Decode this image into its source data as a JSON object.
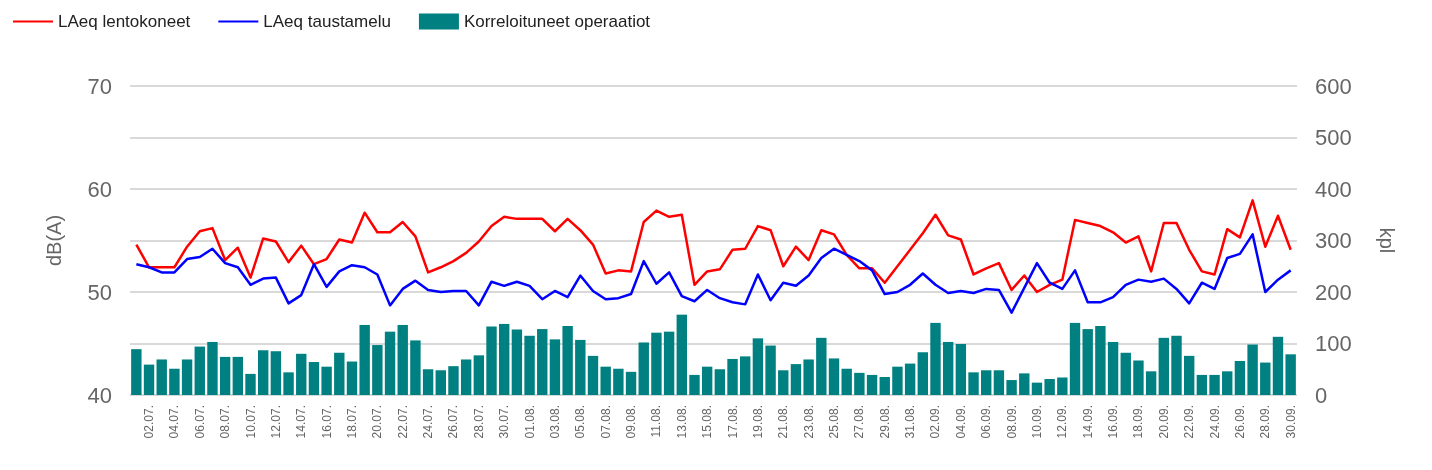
{
  "chart_data": {
    "type": "line",
    "ylabel": "dB(A)",
    "y2label": "kpl",
    "legend": "top left",
    "grid": true,
    "categories": [
      null,
      "02.07.",
      null,
      "04.07.",
      null,
      "06.07.",
      null,
      "08.07.",
      null,
      "10.07.",
      null,
      "12.07.",
      null,
      "14.07.",
      null,
      "16.07.",
      null,
      "18.07.",
      null,
      "20.07.",
      null,
      "22.07.",
      null,
      "24.07.",
      null,
      "26.07.",
      null,
      "28.07.",
      null,
      "30.07.",
      null,
      "01.08.",
      null,
      "03.08.",
      null,
      "05.08.",
      null,
      "07.08.",
      null,
      "09.08.",
      null,
      "11.08.",
      null,
      "13.08.",
      null,
      "15.08.",
      null,
      "17.08.",
      null,
      "19.08.",
      null,
      "21.08.",
      null,
      "23.08.",
      null,
      "25.08.",
      null,
      "27.08.",
      null,
      "29.08.",
      null,
      "31.08.",
      null,
      "02.09.",
      null,
      "04.09.",
      null,
      "06.09.",
      null,
      "08.09.",
      null,
      "10.09.",
      null,
      "12.09.",
      null,
      "14.09.",
      null,
      "16.09.",
      null,
      "18.09.",
      null,
      "20.09.",
      null,
      "22.09.",
      null,
      "24.09.",
      null,
      "26.09.",
      null,
      "28.09.",
      null,
      "30.09."
    ],
    "ylim": [
      40,
      70
    ],
    "yticks": [
      40,
      50,
      60,
      70
    ],
    "y2lim": [
      0,
      600
    ],
    "y2ticks": [
      0,
      100,
      200,
      300,
      400,
      500,
      600
    ],
    "series": [
      {
        "name": "LAeq lentokoneet",
        "color": "#ff0000",
        "values": [
          54.6,
          52.4,
          52.4,
          52.4,
          54.4,
          55.9,
          56.2,
          53.1,
          54.3,
          51.4,
          55.2,
          54.9,
          52.9,
          54.5,
          52.7,
          53.2,
          55.1,
          54.8,
          57.7,
          55.8,
          55.8,
          56.8,
          55.4,
          51.9,
          52.4,
          53.0,
          53.8,
          54.9,
          56.4,
          57.3,
          57.1,
          57.1,
          57.1,
          55.9,
          57.1,
          56.0,
          54.6,
          51.8,
          52.1,
          52.0,
          56.8,
          57.9,
          57.3,
          57.5,
          50.7,
          52.0,
          52.2,
          54.1,
          54.2,
          56.4,
          56.0,
          52.5,
          54.4,
          53.1,
          56.0,
          55.6,
          53.6,
          52.3,
          52.3,
          50.9,
          52.5,
          54.1,
          55.7,
          57.5,
          55.5,
          55.1,
          51.7,
          52.3,
          52.8,
          50.2,
          51.6,
          50.0,
          50.7,
          51.2,
          57.0,
          56.7,
          56.4,
          55.8,
          54.8,
          55.4,
          52.0,
          56.7,
          56.7,
          54.1,
          52.0,
          51.7,
          56.1,
          55.3,
          58.9,
          54.4,
          57.4,
          54.1
        ]
      },
      {
        "name": "LAeq taustamelu",
        "color": "#0000ff",
        "values": [
          52.7,
          52.4,
          51.9,
          51.9,
          53.2,
          53.4,
          54.2,
          52.8,
          52.4,
          50.7,
          51.3,
          51.4,
          48.9,
          49.7,
          52.7,
          50.5,
          52.0,
          52.6,
          52.4,
          51.7,
          48.7,
          50.3,
          51.1,
          50.2,
          50.0,
          50.1,
          50.1,
          48.7,
          51.0,
          50.6,
          51.0,
          50.6,
          49.3,
          50.1,
          49.5,
          51.6,
          50.1,
          49.3,
          49.4,
          49.8,
          53.0,
          50.8,
          51.9,
          49.6,
          49.1,
          50.2,
          49.4,
          49.0,
          48.8,
          51.7,
          49.2,
          50.9,
          50.6,
          51.6,
          53.3,
          54.2,
          53.6,
          53.0,
          52.1,
          49.8,
          50.0,
          50.7,
          51.8,
          50.7,
          49.9,
          50.1,
          49.9,
          50.3,
          50.2,
          48.0,
          50.4,
          52.8,
          50.9,
          50.3,
          52.1,
          49.0,
          49.0,
          49.5,
          50.7,
          51.2,
          51.0,
          51.3,
          50.3,
          48.9,
          50.9,
          50.3,
          53.3,
          53.7,
          55.6,
          50.0,
          51.2,
          52.1
        ]
      },
      {
        "name": "Korreloituneet operaatiot",
        "type": "bar",
        "axis": "y2",
        "color": "#008080",
        "values": [
          89,
          59,
          69,
          51,
          69,
          94,
          103,
          74,
          74,
          41,
          87,
          85,
          44,
          80,
          64,
          55,
          82,
          65,
          136,
          97,
          123,
          136,
          106,
          50,
          48,
          56,
          69,
          77,
          133,
          138,
          127,
          115,
          128,
          108,
          134,
          107,
          76,
          55,
          51,
          45,
          102,
          121,
          123,
          156,
          39,
          55,
          50,
          70,
          75,
          110,
          96,
          48,
          60,
          69,
          111,
          71,
          51,
          43,
          39,
          35,
          55,
          61,
          83,
          140,
          103,
          99,
          44,
          48,
          48,
          29,
          42,
          24,
          31,
          34,
          140,
          128,
          134,
          103,
          82,
          67,
          46,
          111,
          115,
          76,
          39,
          39,
          46,
          66,
          98,
          63,
          113,
          79
        ]
      }
    ]
  }
}
